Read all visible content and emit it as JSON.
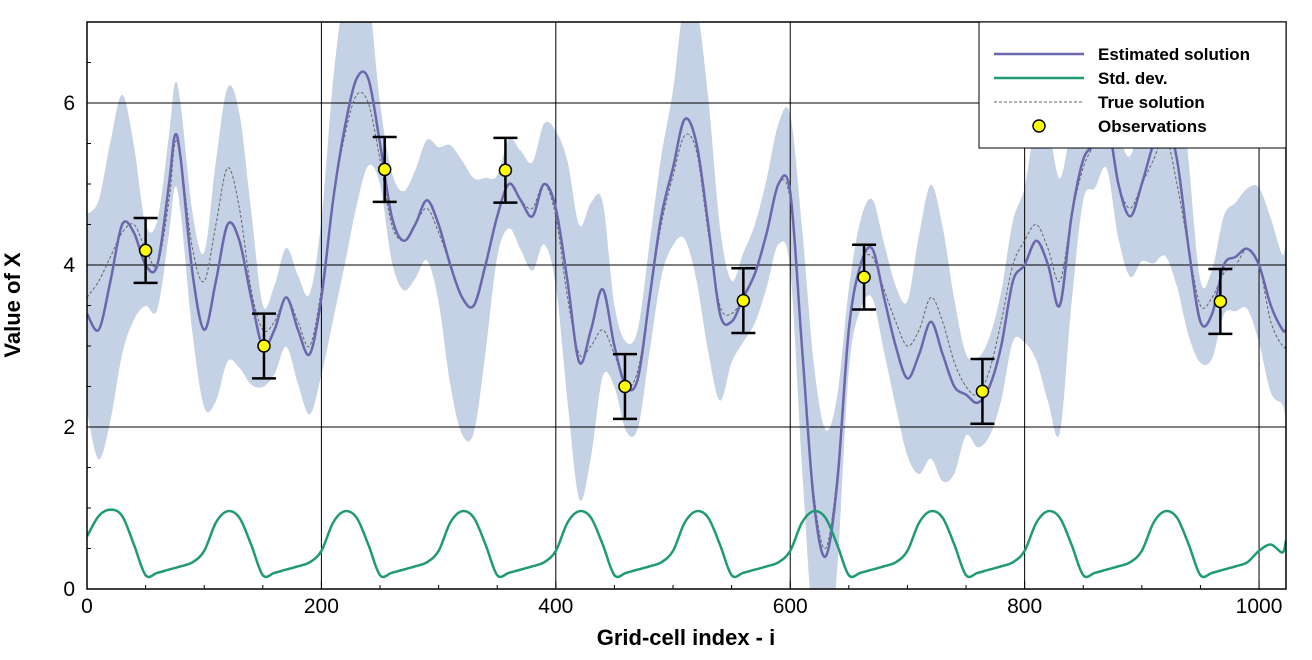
{
  "chart_data": {
    "type": "line",
    "xlabel": "Grid-cell index - i",
    "ylabel": "Value of X",
    "xlim": [
      0,
      1023
    ],
    "ylim": [
      0,
      7
    ],
    "grid": true,
    "legend_position": "top-right",
    "xticks": [
      0,
      200,
      400,
      600,
      800,
      1000
    ],
    "yticks": [
      0,
      2,
      4,
      6
    ],
    "colors": {
      "estimated": "#6b67ad",
      "stddev": "#1f9a74",
      "truth": "#666666",
      "band": "#c5d1e4",
      "obs_fill": "#ffff00"
    },
    "legend": [
      {
        "key": "estimated",
        "label": "Estimated solution"
      },
      {
        "key": "stddev",
        "label": "Std. dev."
      },
      {
        "key": "truth",
        "label": "True solution"
      },
      {
        "key": "observations",
        "label": "Observations"
      }
    ],
    "series": [
      {
        "key": "estimated",
        "name": "Estimated solution",
        "x": [
          0,
          10,
          20,
          30,
          40,
          50,
          60,
          70,
          75,
          80,
          90,
          100,
          110,
          120,
          130,
          140,
          150,
          160,
          170,
          180,
          190,
          200,
          210,
          220,
          230,
          240,
          250,
          260,
          270,
          280,
          290,
          300,
          310,
          320,
          330,
          340,
          350,
          360,
          370,
          380,
          390,
          400,
          410,
          420,
          430,
          440,
          450,
          460,
          470,
          480,
          490,
          500,
          510,
          520,
          530,
          540,
          550,
          560,
          570,
          580,
          590,
          600,
          610,
          620,
          630,
          640,
          650,
          660,
          670,
          680,
          690,
          700,
          710,
          720,
          730,
          740,
          750,
          760,
          770,
          780,
          790,
          800,
          810,
          820,
          830,
          840,
          850,
          860,
          870,
          880,
          890,
          900,
          910,
          920,
          930,
          940,
          950,
          960,
          970,
          980,
          990,
          1000,
          1010,
          1020,
          1023
        ],
        "y": [
          3.4,
          3.2,
          3.8,
          4.5,
          4.4,
          4.0,
          4.0,
          5.0,
          5.6,
          5.3,
          3.9,
          3.2,
          3.8,
          4.5,
          4.3,
          3.6,
          3.0,
          3.2,
          3.6,
          3.2,
          2.9,
          3.6,
          4.8,
          5.7,
          6.3,
          6.3,
          5.5,
          4.6,
          4.3,
          4.5,
          4.8,
          4.5,
          4.0,
          3.6,
          3.5,
          4.0,
          4.6,
          5.0,
          4.8,
          4.6,
          5.0,
          4.7,
          3.8,
          2.8,
          3.2,
          3.7,
          3.0,
          2.5,
          2.6,
          3.6,
          4.6,
          5.2,
          5.8,
          5.5,
          4.5,
          3.4,
          3.3,
          3.6,
          3.9,
          4.4,
          5.0,
          4.9,
          3.0,
          1.1,
          0.4,
          1.3,
          3.2,
          4.0,
          4.2,
          3.6,
          3.0,
          2.6,
          2.9,
          3.3,
          2.9,
          2.5,
          2.4,
          2.3,
          2.5,
          3.0,
          3.8,
          4.0,
          4.3,
          4.0,
          3.5,
          4.6,
          5.3,
          5.5,
          5.8,
          5.0,
          4.6,
          5.0,
          5.5,
          5.8,
          5.3,
          4.2,
          3.3,
          3.4,
          4.0,
          4.1,
          4.2,
          4.0,
          3.5,
          3.2,
          3.2
        ]
      },
      {
        "key": "truth",
        "name": "True solution",
        "x": [
          0,
          10,
          20,
          30,
          40,
          50,
          60,
          70,
          75,
          80,
          90,
          100,
          110,
          120,
          130,
          140,
          150,
          160,
          170,
          180,
          190,
          200,
          210,
          220,
          230,
          240,
          250,
          260,
          270,
          280,
          290,
          300,
          310,
          320,
          330,
          340,
          350,
          360,
          370,
          380,
          390,
          400,
          410,
          420,
          430,
          440,
          450,
          460,
          470,
          480,
          490,
          500,
          510,
          520,
          530,
          540,
          550,
          560,
          570,
          580,
          590,
          600,
          610,
          620,
          630,
          640,
          650,
          660,
          670,
          680,
          690,
          700,
          710,
          720,
          730,
          740,
          750,
          760,
          770,
          780,
          790,
          800,
          810,
          820,
          830,
          840,
          850,
          860,
          870,
          880,
          890,
          900,
          910,
          920,
          930,
          940,
          950,
          960,
          970,
          980,
          990,
          1000,
          1010,
          1020,
          1023
        ],
        "y": [
          3.6,
          3.8,
          4.1,
          4.4,
          4.5,
          4.2,
          4.0,
          4.8,
          5.5,
          5.3,
          4.2,
          3.8,
          4.5,
          5.2,
          4.7,
          3.7,
          3.2,
          3.3,
          3.6,
          3.3,
          3.0,
          3.7,
          4.8,
          5.6,
          6.1,
          6.0,
          5.3,
          4.5,
          4.3,
          4.5,
          4.7,
          4.4,
          4.0,
          3.6,
          3.5,
          4.0,
          4.6,
          5.0,
          4.8,
          4.7,
          5.0,
          4.6,
          3.6,
          2.9,
          3.0,
          3.2,
          2.9,
          2.5,
          2.7,
          3.6,
          4.5,
          5.1,
          5.6,
          5.4,
          4.4,
          3.5,
          3.4,
          3.6,
          3.9,
          4.4,
          5.0,
          4.8,
          3.0,
          1.2,
          0.5,
          1.4,
          3.2,
          4.0,
          4.1,
          3.7,
          3.3,
          3.0,
          3.2,
          3.6,
          3.3,
          2.8,
          2.5,
          2.4,
          2.7,
          3.3,
          4.0,
          4.3,
          4.5,
          4.2,
          3.8,
          4.6,
          5.2,
          5.5,
          5.7,
          5.0,
          4.7,
          5.0,
          5.3,
          5.6,
          5.0,
          4.2,
          3.5,
          3.6,
          3.9,
          4.0,
          4.2,
          4.0,
          3.3,
          3.0,
          3.0
        ]
      },
      {
        "key": "stddev",
        "name": "Std. dev.",
        "x": [
          0,
          10,
          20,
          30,
          40,
          50,
          60,
          70,
          80,
          90,
          100,
          110,
          120,
          130,
          140,
          150,
          160,
          170,
          180,
          190,
          200,
          210,
          220,
          230,
          240,
          250,
          260,
          270,
          280,
          290,
          300,
          310,
          320,
          330,
          340,
          350,
          360,
          370,
          380,
          390,
          400,
          410,
          420,
          430,
          440,
          450,
          460,
          470,
          480,
          490,
          500,
          510,
          520,
          530,
          540,
          550,
          560,
          570,
          580,
          590,
          600,
          610,
          620,
          630,
          640,
          650,
          660,
          670,
          680,
          690,
          700,
          710,
          720,
          730,
          740,
          750,
          760,
          770,
          780,
          790,
          800,
          810,
          820,
          830,
          840,
          850,
          860,
          870,
          880,
          890,
          900,
          910,
          920,
          930,
          940,
          950,
          960,
          970,
          980,
          990,
          1000,
          1010,
          1020,
          1023
        ],
        "y": [
          0.65,
          0.9,
          0.98,
          0.9,
          0.55,
          0.17,
          0.2,
          0.24,
          0.28,
          0.33,
          0.47,
          0.82,
          0.96,
          0.88,
          0.55,
          0.17,
          0.2,
          0.24,
          0.28,
          0.33,
          0.47,
          0.82,
          0.96,
          0.88,
          0.55,
          0.17,
          0.2,
          0.24,
          0.28,
          0.33,
          0.47,
          0.82,
          0.96,
          0.88,
          0.55,
          0.17,
          0.2,
          0.24,
          0.28,
          0.33,
          0.47,
          0.82,
          0.96,
          0.88,
          0.55,
          0.17,
          0.2,
          0.24,
          0.28,
          0.33,
          0.47,
          0.82,
          0.96,
          0.88,
          0.55,
          0.17,
          0.2,
          0.24,
          0.28,
          0.33,
          0.47,
          0.82,
          0.96,
          0.88,
          0.55,
          0.17,
          0.2,
          0.24,
          0.28,
          0.33,
          0.47,
          0.82,
          0.96,
          0.88,
          0.55,
          0.17,
          0.2,
          0.24,
          0.28,
          0.33,
          0.47,
          0.82,
          0.96,
          0.88,
          0.55,
          0.17,
          0.2,
          0.24,
          0.28,
          0.33,
          0.47,
          0.82,
          0.96,
          0.88,
          0.55,
          0.17,
          0.2,
          0.24,
          0.28,
          0.33,
          0.47,
          0.55,
          0.45,
          0.6
        ]
      }
    ],
    "observations": [
      {
        "x": 50,
        "y": 4.18,
        "err": 0.4
      },
      {
        "x": 151,
        "y": 3.0,
        "err": 0.4
      },
      {
        "x": 254,
        "y": 5.18,
        "err": 0.4
      },
      {
        "x": 357,
        "y": 5.17,
        "err": 0.4
      },
      {
        "x": 459,
        "y": 2.5,
        "err": 0.4
      },
      {
        "x": 560,
        "y": 3.56,
        "err": 0.4
      },
      {
        "x": 663,
        "y": 3.85,
        "err": 0.4
      },
      {
        "x": 764,
        "y": 2.44,
        "err": 0.4
      },
      {
        "x": 967,
        "y": 3.55,
        "err": 0.4
      }
    ]
  }
}
